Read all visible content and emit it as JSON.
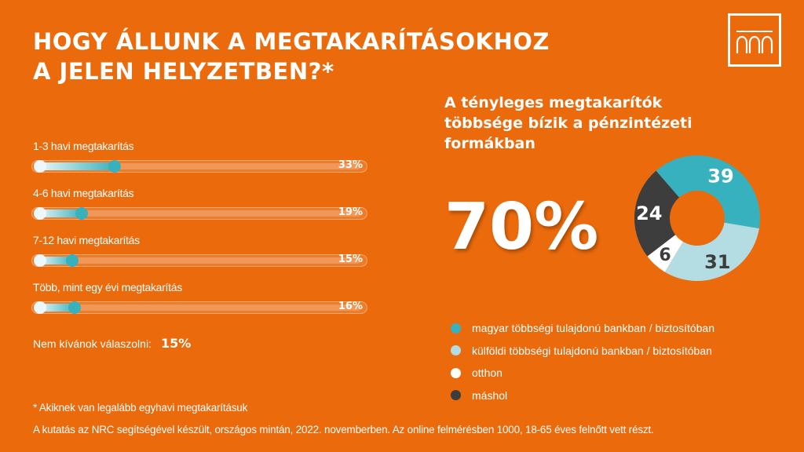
{
  "title_line1": "HOGY ÁLLUNK A MEGTAKARÍTÁSOKHOZ",
  "title_line2": "A JELEN HELYZETBEN?*",
  "colors": {
    "background": "#EB6A0C",
    "teal": "#37B1BD",
    "light_teal": "#B3DDE2",
    "white": "#FFFFFF",
    "dark": "#3D3D3D"
  },
  "chart_data": [
    {
      "type": "bar",
      "orientation": "horizontal",
      "categories": [
        "1-3 havi megtakarítás",
        "4-6 havi megtakarítás",
        "7-12 havi megtakarítás",
        "Több, mint egy évi megtakarítás"
      ],
      "values": [
        33,
        19,
        15,
        16
      ],
      "labels": [
        "33%",
        "19%",
        "15%",
        "16%"
      ],
      "xlim": [
        0,
        100
      ]
    },
    {
      "type": "pie",
      "donut": true,
      "categories": [
        "magyar többségi tulajdonú bankban / biztosítóban",
        "külföldi többségi tulajdonú bankban / biztosítóban",
        "otthon",
        "máshol"
      ],
      "values": [
        39,
        31,
        6,
        24
      ],
      "labels": [
        "39",
        "31",
        "6",
        "24"
      ],
      "colors": [
        "#37B1BD",
        "#B3DDE2",
        "#FFFFFF",
        "#3D3D3D"
      ],
      "label_colors": [
        "#FFFFFF",
        "#3D3D3D",
        "#3D3D3D",
        "#FFFFFF"
      ],
      "legend_position": "bottom"
    }
  ],
  "no_answer": {
    "label": "Nem kívánok válaszolni:",
    "value": "15%"
  },
  "subtitle_lines": [
    "A tényleges megtakarítók",
    "többsége bízik a pénzintézeti",
    "formákban"
  ],
  "big_number": "70%",
  "footnote": "* Akiknek van legalább egyhavi megtakarításuk",
  "source": "A kutatás az NRC segítségével készült, országos mintán, 2022. novemberben. Az online felmérésben 1000, 18-65 éves felnőtt vett részt."
}
